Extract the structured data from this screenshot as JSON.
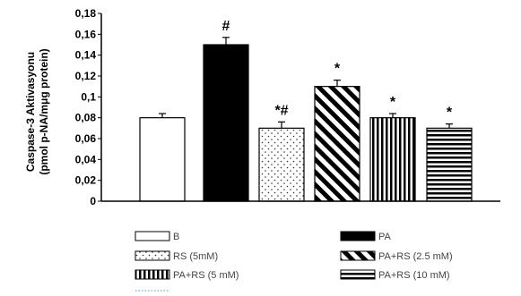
{
  "chart_data": {
    "type": "bar",
    "ylabel_line1": "Caspase-3 Aktivasyonu",
    "ylabel_line2": "(pmol p-NA/mμg protein)",
    "ylim": [
      0,
      0.18
    ],
    "y_ticks": [
      "0",
      "0,02",
      "0,04",
      "0,06",
      "0,08",
      "0,1",
      "0,12",
      "0,14",
      "0,16",
      "0,18"
    ],
    "categories": [
      "B",
      "PA",
      "RS (5mM)",
      "PA+RS (2.5 mM)",
      "PA+RS (5 mM)",
      "PA+RS (10 mM)"
    ],
    "values": [
      0.08,
      0.15,
      0.07,
      0.11,
      0.08,
      0.07
    ],
    "errors": [
      0.004,
      0.007,
      0.006,
      0.006,
      0.004,
      0.004
    ],
    "annotations": [
      "",
      "#",
      "*#",
      "*",
      "*",
      "*"
    ],
    "patterns": [
      "white",
      "black",
      "dots",
      "diagonal",
      "vertical",
      "horizontal"
    ],
    "legend": [
      {
        "label": "B",
        "pattern": "white"
      },
      {
        "label": "PA",
        "pattern": "black"
      },
      {
        "label": "RS (5mM)",
        "pattern": "dots"
      },
      {
        "label": "PA+RS (2.5 mM)",
        "pattern": "diagonal"
      },
      {
        "label": "PA+RS (5 mM)",
        "pattern": "vertical"
      },
      {
        "label": "PA+RS (10 mM)",
        "pattern": "horizontal"
      }
    ],
    "legend_placement": "bottom",
    "grid": false,
    "bar_color": "#000000"
  }
}
